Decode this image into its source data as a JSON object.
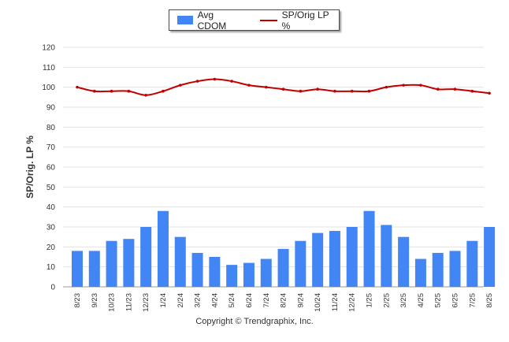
{
  "chart_data": {
    "type": "bar",
    "categories": [
      "8/23",
      "9/23",
      "10/23",
      "11/23",
      "12/23",
      "1/24",
      "2/24",
      "3/24",
      "4/24",
      "5/24",
      "6/24",
      "7/24",
      "8/24",
      "9/24",
      "10/24",
      "11/24",
      "12/24",
      "1/25",
      "2/25",
      "3/25",
      "4/25",
      "5/25",
      "6/25",
      "7/25",
      "8/25"
    ],
    "series": [
      {
        "name": "Avg CDOM",
        "kind": "bar",
        "color": "#4285f4",
        "values": [
          18,
          18,
          23,
          24,
          30,
          38,
          25,
          17,
          15,
          11,
          12,
          14,
          19,
          23,
          27,
          28,
          30,
          38,
          31,
          25,
          14,
          17,
          18,
          23,
          30
        ]
      },
      {
        "name": "SP/Orig LP %",
        "kind": "line",
        "color": "#c00000",
        "values": [
          100,
          98,
          98,
          98,
          96,
          98,
          101,
          103,
          104,
          103,
          101,
          100,
          99,
          98,
          99,
          98,
          98,
          98,
          100,
          101,
          101,
          99,
          99,
          98,
          97
        ]
      }
    ],
    "ylabel": "SP/Orig. LP %",
    "ylim": [
      0,
      120
    ],
    "yticks": [
      0,
      10,
      20,
      30,
      40,
      50,
      60,
      70,
      80,
      90,
      100,
      110,
      120
    ],
    "grid": true,
    "legend_position": "top-center"
  },
  "footer": {
    "copyright": "Copyright © Trendgraphix, Inc."
  }
}
